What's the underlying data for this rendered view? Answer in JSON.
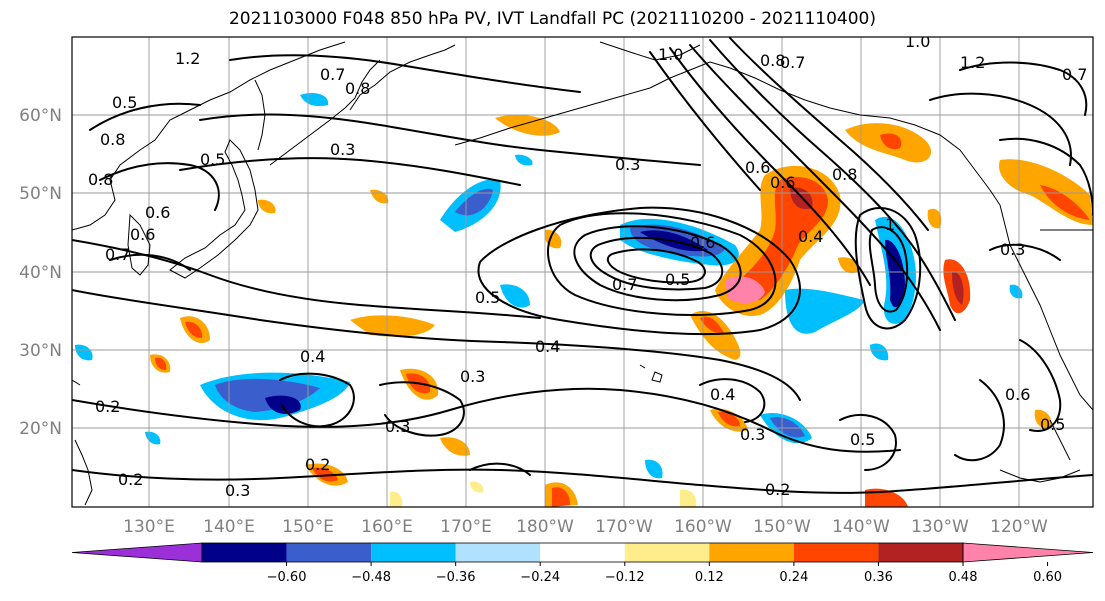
{
  "title": "2021103000 F048 850 hPa PV, IVT Landfall PC (2021110200 - 2021110400)",
  "lat_labels": [
    "60°N",
    "50°N",
    "40°N",
    "30°N",
    "20°N"
  ],
  "lon_labels": [
    "130°E",
    "140°E",
    "150°E",
    "160°E",
    "170°E",
    "180°W",
    "170°W",
    "160°W",
    "150°W",
    "140°W",
    "130°W",
    "120°W"
  ],
  "colorbar": {
    "colors": [
      "#9b30d9",
      "#00008b",
      "#3a5fcd",
      "#00bfff",
      "#b0e2ff",
      "#ffffff",
      "#ffec8b",
      "#ffa500",
      "#ff4500",
      "#b22222",
      "#ff82ab"
    ],
    "tick_labels": [
      "−0.60",
      "−0.48",
      "−0.36",
      "−0.24",
      "−0.12",
      "0.12",
      "0.24",
      "0.36",
      "0.48",
      "0.60"
    ]
  },
  "contour_labels": [
    "1.2",
    "0.8",
    "0.7",
    "1.0",
    "0.8",
    "0.7",
    "1.0",
    "1.2",
    "0.5",
    "0.3",
    "0.8",
    "0.6",
    "0.6",
    "0.7",
    "0.8",
    "0.5",
    "0.6",
    "0.7",
    "0.5",
    "0.4",
    "0.3",
    "0.3",
    "0.2",
    "0.3",
    "0.2",
    "0.2",
    "0.4",
    "0.3",
    "0.4",
    "0.2",
    "0.6",
    "0.5",
    "0.3",
    "0.6",
    "0.4",
    "0.5",
    "0.7",
    "0.8",
    "0.6",
    "0.5",
    "0.3",
    "1"
  ]
}
